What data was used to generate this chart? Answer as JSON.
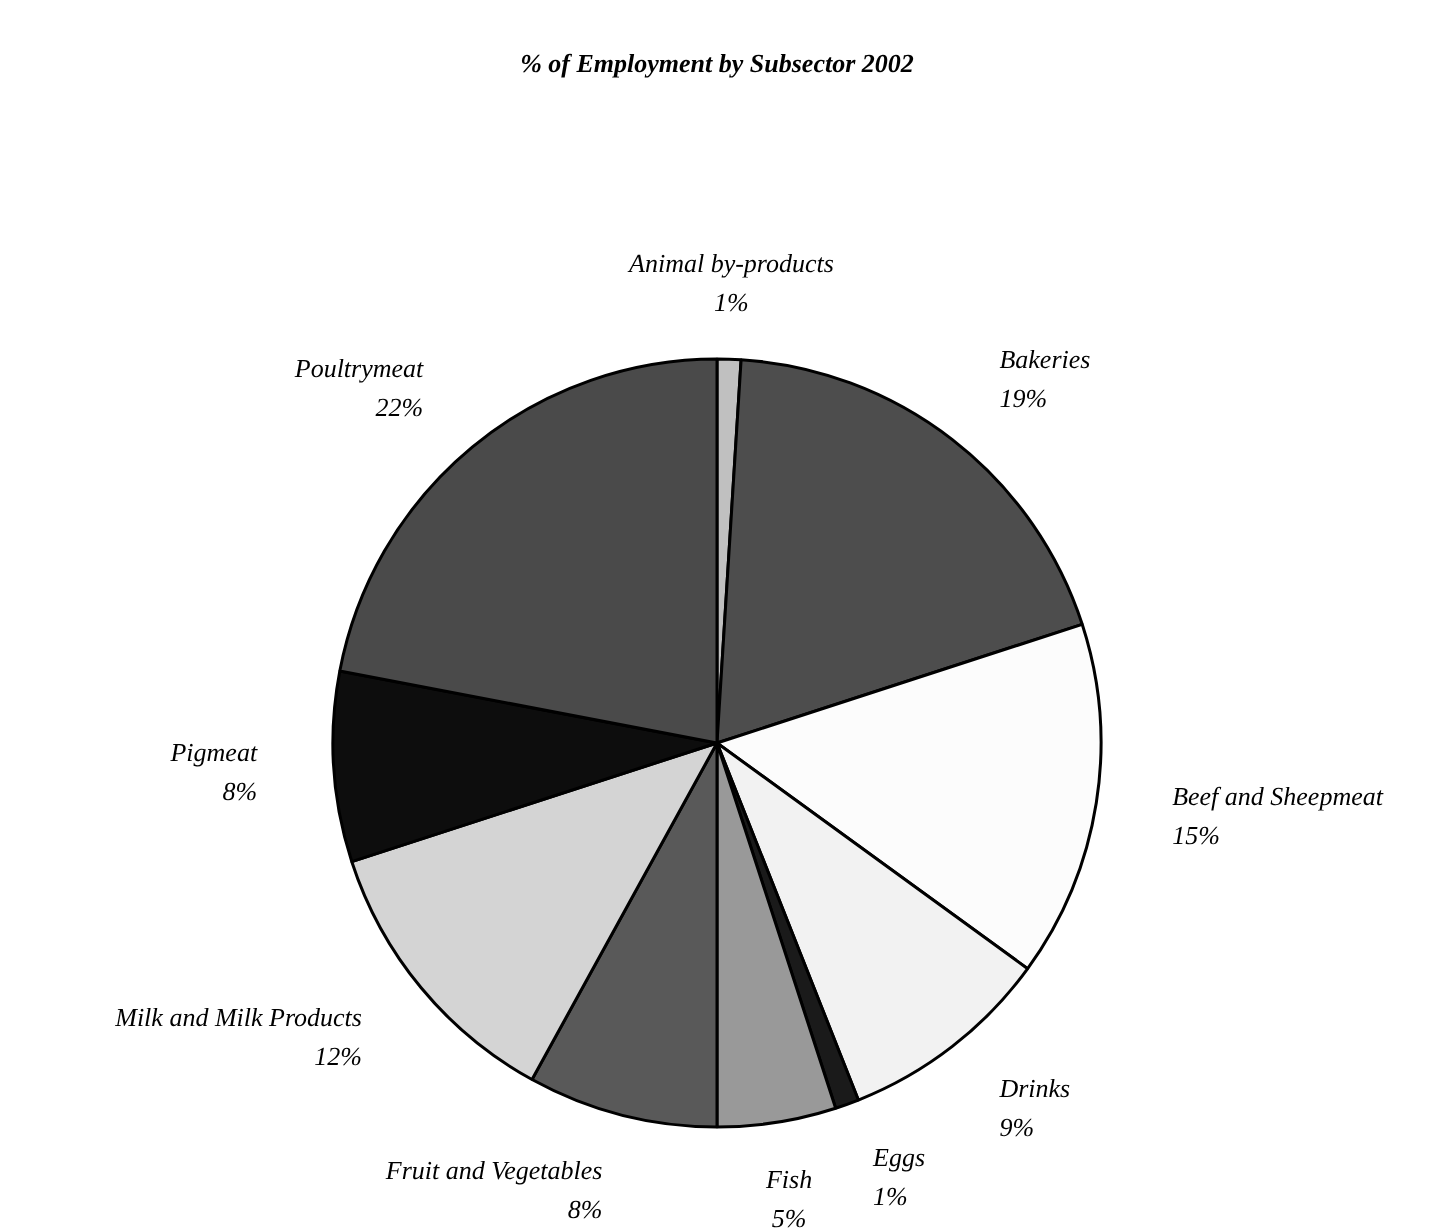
{
  "chart_data": {
    "type": "pie",
    "title": "% of Employment by Subsector 2002",
    "categories": [
      "Animal by-products",
      "Bakeries",
      "Beef and Sheepmeat",
      "Drinks",
      "Eggs",
      "Fish",
      "Fruit and Vegetables",
      "Milk and Milk Products",
      "Pigmeat",
      "Poultrymeat"
    ],
    "values": [
      1,
      19,
      15,
      9,
      1,
      5,
      8,
      12,
      8,
      22
    ],
    "value_labels": [
      "1%",
      "19%",
      "15%",
      "9%",
      "1%",
      "5%",
      "8%",
      "12%",
      "8%",
      "22%"
    ],
    "colors": [
      "#c0c0c0",
      "#4d4d4d",
      "#fcfcfc",
      "#f2f2f2",
      "#1a1a1a",
      "#999999",
      "#595959",
      "#d4d4d4",
      "#0d0d0d",
      "#4a4a4a"
    ]
  }
}
